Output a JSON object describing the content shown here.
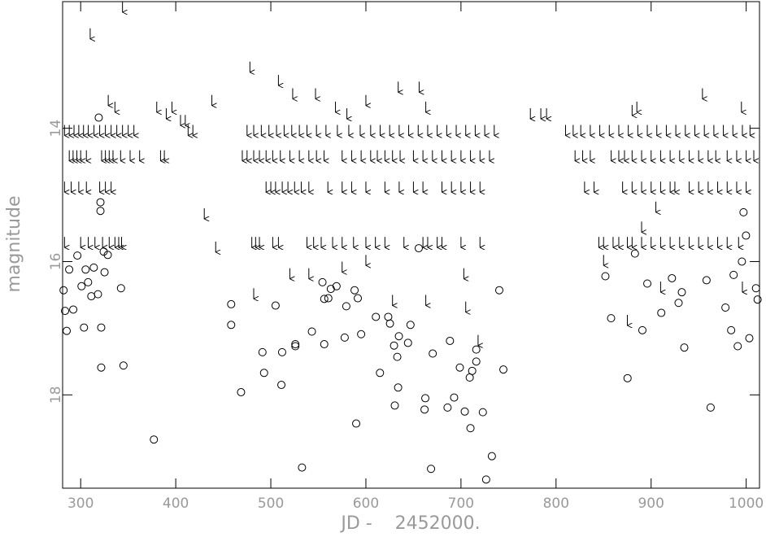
{
  "chart_data": {
    "type": "scatter",
    "xlabel": "JD -    2452000.",
    "ylabel": "magnitude",
    "xlim": [
      281,
      1014
    ],
    "ylim": [
      19.4,
      12.1
    ],
    "xticks": [
      300,
      400,
      500,
      600,
      700,
      800,
      900,
      1000
    ],
    "yticks": [
      14,
      16,
      18
    ],
    "color": "#000000",
    "series": [
      {
        "marker": "circle",
        "x": [
          283.6,
          282,
          285.3,
          287.9,
          292.2,
          296.5,
          300.9,
          303.5,
          305.2,
          307.8,
          311.2,
          313.8,
          318.2,
          321.6,
          321.6,
          324.2,
          325.1,
          328.5,
          342.4,
          345.0,
          377.0,
          319.0,
          320.8,
          320.8,
          458.3,
          458.3,
          468.7,
          491.2,
          492.9,
          505.0,
          511.9,
          511.1,
          525.8,
          525.8,
          532.8,
          543.2,
          554.3,
          556.2,
          556.2,
          560.5,
          563.1,
          569.1,
          577.7,
          579.4,
          588.1,
          591.5,
          595.0,
          589.8,
          610.5,
          614.8,
          623.5,
          625.3,
          629.6,
          633.0,
          634.7,
          630.4,
          633.9,
          644.3,
          646.9,
          655.6,
          662.5,
          661.7,
          668.5,
          670.3,
          688.4,
          685.9,
          692.8,
          698.8,
          704.0,
          709.2,
          711.8,
          716.1,
          716.1,
          710.0,
          723.0,
          726.5,
          732.5,
          740.3,
          744.6,
          851.9,
          857.9,
          875.2,
          883.0,
          890.8,
          896.0,
          910.7,
          921.9,
          928.9,
          932.3,
          934.9,
          958.3,
          978.2,
          984.2,
          986.8,
          991.1,
          995.5,
          997.2,
          999.8,
          1003.3,
          1010.3,
          1012.0,
          962.6
        ],
        "values": [
          16.74,
          16.43,
          17.04,
          16.12,
          16.72,
          15.91,
          16.37,
          16.99,
          16.12,
          16.31,
          16.52,
          16.09,
          16.49,
          16.99,
          17.59,
          15.85,
          16.16,
          15.9,
          16.4,
          17.56,
          18.67,
          13.84,
          15.24,
          15.11,
          16.64,
          16.95,
          17.96,
          17.36,
          17.67,
          16.66,
          17.36,
          17.85,
          17.24,
          17.27,
          19.09,
          17.05,
          16.31,
          16.56,
          17.24,
          16.55,
          16.41,
          16.37,
          17.14,
          16.67,
          16.43,
          16.55,
          17.09,
          18.43,
          16.83,
          17.67,
          16.83,
          16.93,
          17.26,
          17.43,
          17.12,
          18.16,
          17.89,
          17.22,
          16.95,
          15.8,
          18.05,
          18.22,
          19.11,
          17.38,
          17.19,
          18.19,
          18.04,
          17.59,
          18.25,
          17.74,
          17.64,
          17.32,
          17.5,
          18.5,
          18.26,
          19.27,
          18.92,
          16.43,
          17.62,
          16.22,
          16.85,
          17.75,
          15.88,
          17.03,
          16.33,
          16.77,
          16.25,
          16.62,
          16.46,
          17.29,
          16.28,
          16.69,
          17.03,
          16.2,
          17.27,
          16.0,
          15.26,
          15.61,
          17.15,
          16.4,
          16.57,
          18.19
        ]
      },
      {
        "marker": "arrow",
        "x": [
          283,
          288,
          293,
          298,
          303,
          308,
          314,
          320,
          326,
          332,
          338,
          344,
          350,
          356,
          413,
          418,
          475,
          482,
          490,
          498,
          506,
          514,
          522,
          530,
          538,
          548,
          558,
          570,
          582,
          594,
          605,
          615,
          625,
          635,
          645,
          655,
          665,
          675,
          685,
          695,
          705,
          715,
          725,
          735,
          810,
          818,
          826,
          836,
          846,
          856,
          866,
          876,
          886,
          896,
          906,
          916,
          926,
          936,
          946,
          956,
          966,
          976,
          986,
          996,
          1004,
          288,
          292,
          296,
          300,
          306,
          322,
          326,
          330,
          334,
          342,
          352,
          362,
          384,
          388,
          470,
          475,
          482,
          488,
          495,
          502,
          510,
          520,
          530,
          540,
          548,
          556,
          575,
          585,
          595,
          605,
          612,
          620,
          628,
          636,
          650,
          660,
          670,
          680,
          690,
          700,
          710,
          720,
          730,
          820,
          828,
          836,
          858,
          866,
          872,
          880,
          890,
          900,
          910,
          920,
          930,
          940,
          950,
          960,
          968,
          980,
          990,
          1000,
          1008,
          283,
          290,
          298,
          306,
          320,
          326,
          332,
          495,
          500,
          505,
          512,
          518,
          525,
          532,
          540,
          560,
          575,
          585,
          600,
          620,
          635,
          650,
          660,
          680,
          690,
          700,
          710,
          720,
          830,
          840,
          870,
          880,
          890,
          900,
          910,
          920,
          925,
          940,
          950,
          960,
          970,
          980,
          990,
          1000,
          283,
          300,
          308,
          315,
          323,
          330,
          336,
          340,
          343,
          480,
          484,
          488,
          502,
          508,
          538,
          545,
          553,
          565,
          575,
          587,
          600,
          610,
          620,
          640,
          660,
          665,
          675,
          680,
          700,
          720,
          845,
          850,
          860,
          866,
          875,
          880,
          890,
          900,
          910,
          920,
          930,
          940,
          950,
          960,
          970,
          980,
          992,
          344,
          310,
          478,
          329,
          336,
          380,
          390,
          396,
          405,
          410,
          438,
          508,
          523,
          547,
          568,
          580,
          600,
          634,
          656,
          663,
          773,
          784,
          790,
          880,
          885,
          954,
          995,
          430,
          442,
          482,
          520,
          540,
          575,
          600,
          628,
          663,
          703,
          705,
          718,
          850,
          875,
          910,
          996,
          890,
          905
        ],
        "values": [
          13.95,
          13.95,
          13.95,
          13.95,
          13.95,
          13.95,
          13.95,
          13.95,
          13.95,
          13.95,
          13.95,
          13.95,
          13.95,
          13.95,
          13.95,
          13.95,
          13.95,
          13.95,
          13.95,
          13.95,
          13.95,
          13.95,
          13.95,
          13.95,
          13.95,
          13.95,
          13.95,
          13.95,
          13.95,
          13.95,
          13.95,
          13.95,
          13.95,
          13.95,
          13.95,
          13.95,
          13.95,
          13.95,
          13.95,
          13.95,
          13.95,
          13.95,
          13.95,
          13.95,
          13.95,
          13.95,
          13.95,
          13.95,
          13.95,
          13.95,
          13.95,
          13.95,
          13.95,
          13.95,
          13.95,
          13.95,
          13.95,
          13.95,
          13.95,
          13.95,
          13.95,
          13.95,
          13.95,
          13.95,
          13.95,
          14.33,
          14.33,
          14.33,
          14.33,
          14.33,
          14.33,
          14.33,
          14.33,
          14.33,
          14.33,
          14.33,
          14.33,
          14.33,
          14.33,
          14.33,
          14.33,
          14.33,
          14.33,
          14.33,
          14.33,
          14.33,
          14.33,
          14.33,
          14.33,
          14.33,
          14.33,
          14.33,
          14.33,
          14.33,
          14.33,
          14.33,
          14.33,
          14.33,
          14.33,
          14.33,
          14.33,
          14.33,
          14.33,
          14.33,
          14.33,
          14.33,
          14.33,
          14.33,
          14.33,
          14.33,
          14.33,
          14.33,
          14.33,
          14.33,
          14.33,
          14.33,
          14.33,
          14.33,
          14.33,
          14.33,
          14.33,
          14.33,
          14.33,
          14.33,
          14.33,
          14.33,
          14.33,
          14.33,
          14.8,
          14.8,
          14.8,
          14.8,
          14.8,
          14.8,
          14.8,
          14.8,
          14.8,
          14.8,
          14.8,
          14.8,
          14.8,
          14.8,
          14.8,
          14.8,
          14.8,
          14.8,
          14.8,
          14.8,
          14.8,
          14.8,
          14.8,
          14.8,
          14.8,
          14.8,
          14.8,
          14.8,
          14.8,
          14.8,
          14.8,
          14.8,
          14.8,
          14.8,
          14.8,
          14.8,
          14.8,
          14.8,
          14.8,
          14.8,
          14.8,
          14.8,
          14.8,
          14.8,
          15.63,
          15.63,
          15.63,
          15.63,
          15.63,
          15.63,
          15.63,
          15.63,
          15.63,
          15.63,
          15.63,
          15.63,
          15.63,
          15.63,
          15.63,
          15.63,
          15.63,
          15.63,
          15.63,
          15.63,
          15.63,
          15.63,
          15.63,
          15.63,
          15.63,
          15.63,
          15.63,
          15.63,
          15.63,
          15.63,
          15.63,
          15.63,
          15.63,
          15.63,
          15.63,
          15.63,
          15.63,
          15.63,
          15.63,
          15.63,
          15.63,
          15.63,
          15.63,
          15.63,
          15.63,
          15.63,
          15.63,
          12.1,
          12.5,
          13.0,
          13.5,
          13.6,
          13.6,
          13.7,
          13.6,
          13.8,
          13.8,
          13.5,
          13.2,
          13.4,
          13.4,
          13.6,
          13.7,
          13.5,
          13.3,
          13.3,
          13.6,
          13.7,
          13.7,
          13.7,
          13.65,
          13.6,
          13.4,
          13.6,
          15.2,
          15.7,
          16.4,
          16.1,
          16.1,
          16.0,
          15.9,
          16.5,
          16.5,
          16.1,
          16.6,
          17.1,
          15.9,
          16.8,
          16.3,
          16.3,
          15.4,
          15.1
        ]
      }
    ]
  }
}
